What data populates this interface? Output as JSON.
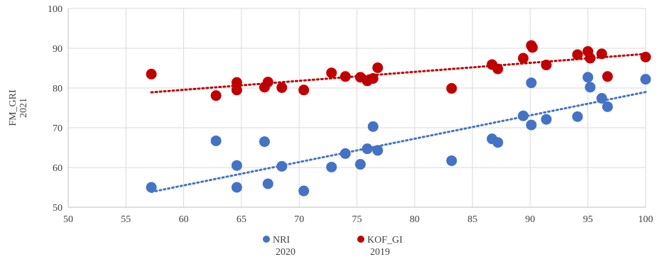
{
  "chart_data": {
    "type": "scatter",
    "title": "",
    "xlabel": "",
    "ylabel": [
      "FM_GRI",
      "2021"
    ],
    "xlim": [
      50,
      100
    ],
    "ylim": [
      50,
      100
    ],
    "x_ticks": [
      50,
      55,
      60,
      65,
      70,
      75,
      80,
      85,
      90,
      95,
      100
    ],
    "y_ticks": [
      50,
      60,
      70,
      80,
      90,
      100
    ],
    "grid": true,
    "legend_position": "bottom",
    "series": [
      {
        "name": [
          "NRI",
          "2020"
        ],
        "color": "#4472C4",
        "trendline": "linear",
        "points": [
          [
            57.2,
            55
          ],
          [
            62.8,
            66.7
          ],
          [
            64.6,
            60.5
          ],
          [
            64.6,
            55
          ],
          [
            67.0,
            66.5
          ],
          [
            67.3,
            55.9
          ],
          [
            68.5,
            60.3
          ],
          [
            70.4,
            54.1
          ],
          [
            72.8,
            60.1
          ],
          [
            74.0,
            63.5
          ],
          [
            75.3,
            60.8
          ],
          [
            75.9,
            64.7
          ],
          [
            76.4,
            70.3
          ],
          [
            76.8,
            64.3
          ],
          [
            83.2,
            61.7
          ],
          [
            86.7,
            67.2
          ],
          [
            87.2,
            66.3
          ],
          [
            89.4,
            73.0
          ],
          [
            90.1,
            81.3
          ],
          [
            90.1,
            70.7
          ],
          [
            91.4,
            72.1
          ],
          [
            94.1,
            72.8
          ],
          [
            95.0,
            82.7
          ],
          [
            95.2,
            80.2
          ],
          [
            96.2,
            77.4
          ],
          [
            96.7,
            75.3
          ],
          [
            100.0,
            82.2
          ]
        ]
      },
      {
        "name": [
          "KOF_GI",
          "2019"
        ],
        "color": "#C00000",
        "trendline": "linear",
        "points": [
          [
            57.2,
            83.5
          ],
          [
            62.8,
            78.1
          ],
          [
            64.6,
            81.4
          ],
          [
            64.6,
            79.5
          ],
          [
            67.0,
            80.2
          ],
          [
            67.3,
            81.5
          ],
          [
            68.5,
            80.1
          ],
          [
            70.4,
            79.5
          ],
          [
            72.8,
            83.8
          ],
          [
            74.0,
            82.9
          ],
          [
            75.3,
            82.7
          ],
          [
            75.9,
            81.8
          ],
          [
            76.4,
            82.4
          ],
          [
            76.8,
            85.1
          ],
          [
            83.2,
            79.9
          ],
          [
            86.7,
            85.9
          ],
          [
            87.2,
            84.8
          ],
          [
            89.4,
            87.5
          ],
          [
            90.1,
            90.7
          ],
          [
            90.2,
            90.2
          ],
          [
            91.4,
            85.8
          ],
          [
            94.1,
            88.4
          ],
          [
            95.0,
            89.2
          ],
          [
            95.2,
            87.5
          ],
          [
            96.2,
            88.6
          ],
          [
            96.7,
            82.9
          ],
          [
            100.0,
            87.8
          ]
        ]
      }
    ]
  }
}
